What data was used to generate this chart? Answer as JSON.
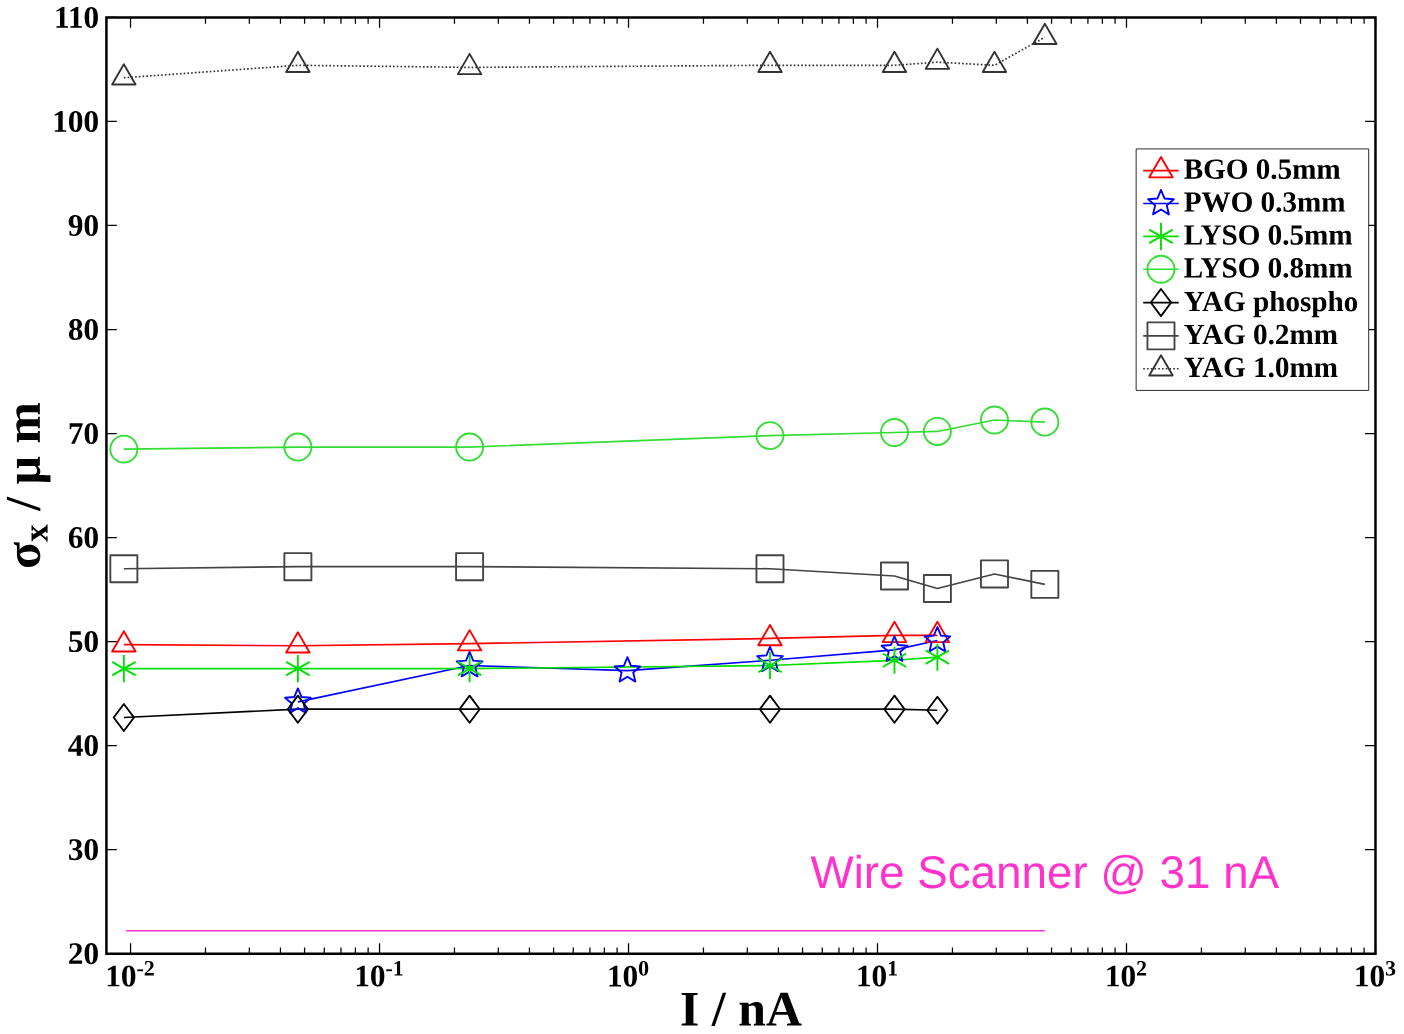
{
  "chart_data": {
    "type": "line",
    "xlabel": "I / nA",
    "ylabel": "σ$_{x}$ / μ m",
    "log": "x",
    "legend": "top right",
    "xlim": [
      0.008,
      1000
    ],
    "ylim": [
      20,
      110
    ],
    "xticks": [
      {
        "value": 0.01,
        "label": "10$^{-2}$"
      },
      {
        "value": 0.1,
        "label": "10$^{-1}$"
      },
      {
        "value": 1,
        "label": "10$^{0}$"
      },
      {
        "value": 10,
        "label": "10$^{1}$"
      },
      {
        "value": 100,
        "label": "10$^{2}$"
      },
      {
        "value": 1000,
        "label": "10$^{3}$"
      }
    ],
    "yticks": [
      20,
      30,
      40,
      50,
      60,
      70,
      80,
      90,
      100,
      110
    ],
    "series": [
      {
        "name": "BGO 0.5mm",
        "color": "#ff0000",
        "marker": "triangle",
        "line_style": "solid",
        "x": [
          0.0094,
          0.047,
          0.23,
          3.7,
          11.7,
          17.4
        ],
        "values": [
          49.7,
          49.6,
          49.8,
          50.3,
          50.6,
          50.6
        ]
      },
      {
        "name": "PWO 0.3mm",
        "color": "#0000ff",
        "marker": "star",
        "line_style": "solid",
        "x": [
          0.047,
          0.23,
          0.99,
          3.7,
          11.7,
          17.4
        ],
        "values": [
          44.2,
          47.7,
          47.2,
          48.2,
          49.2,
          50.1
        ]
      },
      {
        "name": "LYSO 0.5mm",
        "color": "#00e000",
        "marker": "cross",
        "line_style": "solid",
        "x": [
          0.0094,
          0.047,
          0.23,
          3.7,
          11.7,
          17.4
        ],
        "values": [
          47.4,
          47.4,
          47.4,
          47.7,
          48.2,
          48.5
        ]
      },
      {
        "name": "LYSO 0.8mm",
        "color": "#33dd33",
        "marker": "circle",
        "line_style": "solid",
        "x": [
          0.0094,
          0.047,
          0.23,
          3.7,
          11.7,
          17.4,
          29.5,
          47
        ],
        "values": [
          68.5,
          68.7,
          68.7,
          69.8,
          70.1,
          70.2,
          71.3,
          71.1
        ]
      },
      {
        "name": "YAG phospho",
        "color": "#000000",
        "marker": "diamond",
        "line_style": "solid",
        "x": [
          0.0094,
          0.047,
          0.23,
          3.7,
          11.7,
          17.4
        ],
        "values": [
          42.7,
          43.5,
          43.5,
          43.5,
          43.5,
          43.4
        ]
      },
      {
        "name": "YAG 0.2mm",
        "color": "#444444",
        "marker": "square",
        "line_style": "solid",
        "x": [
          0.0094,
          0.047,
          0.23,
          3.7,
          11.7,
          17.4,
          29.5,
          47
        ],
        "values": [
          57.0,
          57.2,
          57.2,
          57.0,
          56.3,
          55.1,
          56.5,
          55.5
        ]
      },
      {
        "name": "YAG 1.0mm",
        "color": "#333333",
        "marker": "triangle",
        "line_style": "dotted",
        "x": [
          0.0094,
          0.047,
          0.23,
          3.7,
          11.7,
          17.4,
          29.5,
          47
        ],
        "values": [
          104.2,
          105.4,
          105.2,
          105.4,
          105.4,
          105.7,
          105.4,
          108.1
        ]
      },
      {
        "name": "Wire Scanner @ 31 nA",
        "color": "#ff33cc",
        "marker": "none",
        "line_style": "solid",
        "x": [
          0.0096,
          47
        ],
        "values": [
          22.2,
          22.2
        ]
      }
    ]
  }
}
